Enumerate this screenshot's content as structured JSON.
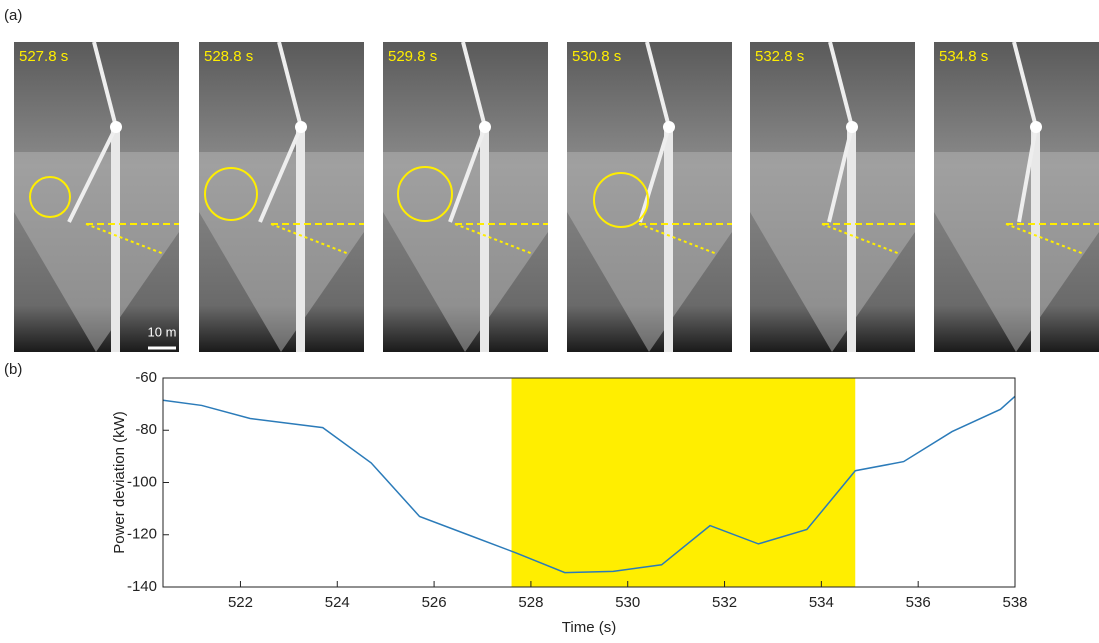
{
  "panel_labels": [
    "(a)",
    "(b)"
  ],
  "frames": {
    "times": [
      "527.8 s",
      "528.8 s",
      "529.8 s",
      "530.8 s",
      "532.8 s",
      "534.8 s"
    ],
    "scale_bar": "10 m"
  },
  "chart_data": {
    "type": "line",
    "xlabel": "Time (s)",
    "ylabel": "Power deviation (kW)",
    "x": [
      520.4,
      521.2,
      522.2,
      523.7,
      524.7,
      525.7,
      526.7,
      527.7,
      528.7,
      529.7,
      530.7,
      531.7,
      532.7,
      533.7,
      534.7,
      535.7,
      536.7,
      537.7,
      538
    ],
    "values": [
      -68.5,
      -70.5,
      -75.5,
      -79,
      -92.5,
      -113,
      -120,
      -127,
      -134.5,
      -134,
      -131.5,
      -116.5,
      -123.5,
      -118,
      -95.5,
      -92,
      -80.5,
      -72,
      -67
    ],
    "color": "#2b7bb9",
    "highlight": {
      "x": [
        527.6,
        534.7
      ],
      "color": "#ffee00"
    },
    "xlim": [
      520.4,
      538
    ],
    "xticks": [
      522,
      524,
      526,
      528,
      530,
      532,
      534,
      536,
      538
    ],
    "ylim": [
      -140,
      -60
    ],
    "yticks": [
      -140,
      -120,
      -100,
      -80,
      -60
    ]
  }
}
